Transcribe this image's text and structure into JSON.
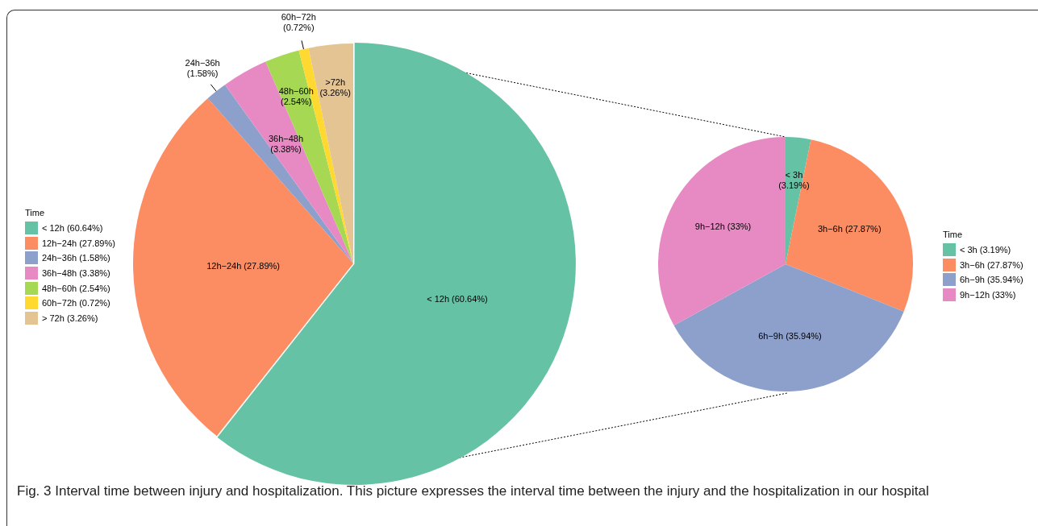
{
  "chart_data": [
    {
      "type": "pie",
      "legend_title": "Time",
      "legend": "left",
      "categories": [
        "< 12h (60.64%)",
        "12h−24h (27.89%)",
        "24h−36h (1.58%)",
        "36h−48h (3.38%)",
        "48h−60h (2.54%)",
        "60h−72h (0.72%)",
        "> 72h (3.26%)"
      ],
      "values": [
        60.64,
        27.89,
        1.58,
        3.38,
        2.54,
        0.72,
        3.26
      ],
      "colors": [
        "#66c2a5",
        "#fc8d62",
        "#8da0cb",
        "#e78ac3",
        "#a6d854",
        "#ffd92f",
        "#e5c494"
      ],
      "value_labels": [
        "< 12h (60.64%)",
        "12h−24h (27.89%)",
        "24h−36h (1.58%)",
        "36h−48h (3.38%)",
        "48h−60h (2.54%)",
        "60h−72h (0.72%)",
        ">72h (3.26%)"
      ],
      "annotations": [
        "Fig. 3 Interval time between injury and hospitalization. This picture expresses the interval time between the injury and the hospitalization in our hospital"
      ]
    },
    {
      "type": "pie",
      "legend_title": "Time",
      "legend": "right",
      "categories": [
        "< 3h (3.19%)",
        "3h−6h (27.87%)",
        "6h−9h (35.94%)",
        "9h−12h (33%)"
      ],
      "values": [
        3.19,
        27.87,
        35.94,
        33
      ],
      "colors": [
        "#66c2a5",
        "#fc8d62",
        "#8da0cb",
        "#e78ac3"
      ],
      "value_labels": [
        "< 3h (3.19%)",
        "3h−6h (27.87%)",
        "6h−9h (35.94%)",
        "9h−12h (33%)"
      ]
    }
  ]
}
